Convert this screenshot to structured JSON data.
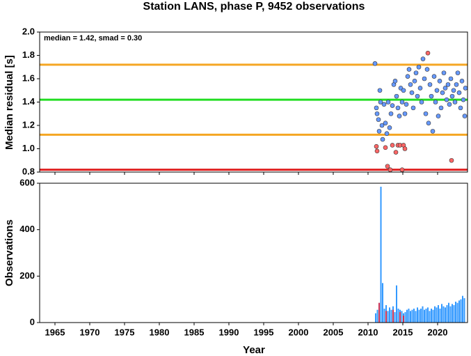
{
  "chart_data": [
    {
      "type": "scatter",
      "title": "Station LANS, phase P, 9452 observations",
      "ylabel": "Median residual [s]",
      "annotation": "median = 1.42, smad = 0.30",
      "xlim": [
        1962.8,
        2024.3
      ],
      "xticks": [
        1965,
        1970,
        1975,
        1980,
        1985,
        1990,
        1995,
        2000,
        2005,
        2010,
        2015,
        2020
      ],
      "ylim": [
        0.8,
        2.0
      ],
      "yticks": [
        0.8,
        {
          "value": 1,
          "label": "1.0"
        },
        1.2,
        1.4,
        1.6,
        1.8,
        {
          "value": 2,
          "label": "2.0"
        }
      ],
      "hlines": [
        {
          "value": 1.72,
          "color": "#f5a623"
        },
        {
          "value": 1.42,
          "color": "#22dd22"
        },
        {
          "value": 1.12,
          "color": "#f5a623"
        },
        {
          "value": 0.82,
          "color": "#e02020"
        }
      ],
      "series": [
        {
          "color": "#6699ff",
          "x": [
            2011.0,
            2011.2,
            2011.3,
            2011.5,
            2011.6,
            2011.7,
            2011.8,
            2012.0,
            2012.1,
            2012.3,
            2012.5,
            2012.7,
            2012.9,
            2013.1,
            2013.3,
            2013.5,
            2013.7,
            2013.9,
            2014.1,
            2014.3,
            2014.5,
            2014.7,
            2014.9,
            2015.1,
            2015.3,
            2015.5,
            2015.7,
            2015.9,
            2016.1,
            2016.3,
            2016.5,
            2016.7,
            2016.9,
            2017.1,
            2017.3,
            2017.5,
            2017.7,
            2017.9,
            2018.1,
            2018.3,
            2018.5,
            2018.7,
            2018.9,
            2019.1,
            2019.3,
            2019.5,
            2019.7,
            2019.9,
            2020.1,
            2020.3,
            2020.5,
            2020.7,
            2020.9,
            2021.1,
            2021.3,
            2021.5,
            2021.7,
            2021.9,
            2022.1,
            2022.3,
            2022.5,
            2022.7,
            2022.9,
            2023.1,
            2023.3,
            2023.5,
            2023.7,
            2023.9,
            2024.0
          ],
          "values": [
            1.73,
            1.35,
            1.3,
            1.25,
            1.15,
            1.5,
            1.4,
            1.2,
            1.08,
            1.38,
            1.22,
            1.13,
            1.4,
            1.18,
            1.3,
            1.37,
            1.55,
            1.58,
            1.45,
            1.35,
            1.28,
            1.52,
            1.4,
            1.5,
            1.3,
            1.38,
            1.62,
            1.68,
            1.55,
            1.48,
            1.35,
            1.58,
            1.65,
            1.45,
            1.7,
            1.52,
            1.4,
            1.77,
            1.6,
            1.3,
            1.68,
            1.22,
            1.55,
            1.45,
            1.15,
            1.62,
            1.4,
            1.5,
            1.28,
            1.58,
            1.35,
            1.48,
            1.65,
            1.52,
            1.42,
            1.55,
            1.38,
            1.6,
            1.45,
            1.5,
            1.4,
            1.55,
            1.65,
            1.48,
            1.35,
            1.58,
            1.42,
            1.28,
            1.52
          ]
        },
        {
          "color": "#ff6666",
          "x": [
            2011.2,
            2011.3,
            2012.5,
            2012.8,
            2013.2,
            2013.5,
            2014.0,
            2014.3,
            2014.6,
            2014.9,
            2015.1,
            2015.3,
            2018.6,
            2022.0
          ],
          "values": [
            1.02,
            0.98,
            1.01,
            0.85,
            0.82,
            1.03,
            0.97,
            1.03,
            1.03,
            0.82,
            1.03,
            1.0,
            1.82,
            0.9
          ]
        }
      ]
    },
    {
      "type": "bar",
      "ylabel": "Observations",
      "xlabel": "Year",
      "xlim": [
        1962.8,
        2024.3
      ],
      "xticks": [
        1965,
        1970,
        1975,
        1980,
        1985,
        1990,
        1995,
        2000,
        2005,
        2010,
        2015,
        2020
      ],
      "ylim": [
        0,
        600
      ],
      "yticks": [
        0,
        200,
        400,
        600
      ],
      "barwidth": 0.25,
      "series": [
        {
          "color": "#3399ff",
          "x": [
            2011.0,
            2011.25,
            2011.5,
            2011.75,
            2012.0,
            2012.25,
            2012.5,
            2012.75,
            2013.0,
            2013.25,
            2013.5,
            2013.75,
            2014.0,
            2014.25,
            2014.5,
            2014.75,
            2015.0,
            2015.25,
            2015.5,
            2015.75,
            2016.0,
            2016.25,
            2016.5,
            2016.75,
            2017.0,
            2017.25,
            2017.5,
            2017.75,
            2018.0,
            2018.25,
            2018.5,
            2018.75,
            2019.0,
            2019.25,
            2019.5,
            2019.75,
            2020.0,
            2020.25,
            2020.5,
            2020.75,
            2021.0,
            2021.25,
            2021.5,
            2021.75,
            2022.0,
            2022.25,
            2022.5,
            2022.75,
            2023.0,
            2023.25,
            2023.5,
            2023.75
          ],
          "values": [
            40,
            55,
            80,
            585,
            170,
            60,
            75,
            50,
            65,
            55,
            70,
            45,
            160,
            60,
            55,
            50,
            40,
            45,
            55,
            60,
            50,
            55,
            60,
            50,
            65,
            55,
            60,
            70,
            55,
            60,
            65,
            50,
            60,
            55,
            70,
            65,
            75,
            60,
            80,
            70,
            65,
            75,
            85,
            70,
            80,
            75,
            90,
            85,
            95,
            100,
            115,
            105
          ]
        },
        {
          "color": "#cc3355",
          "x": [
            2011.5,
            2012.5,
            2013.5,
            2014.5,
            2015.0
          ],
          "values": [
            85,
            50,
            55,
            45,
            30
          ]
        }
      ]
    }
  ]
}
